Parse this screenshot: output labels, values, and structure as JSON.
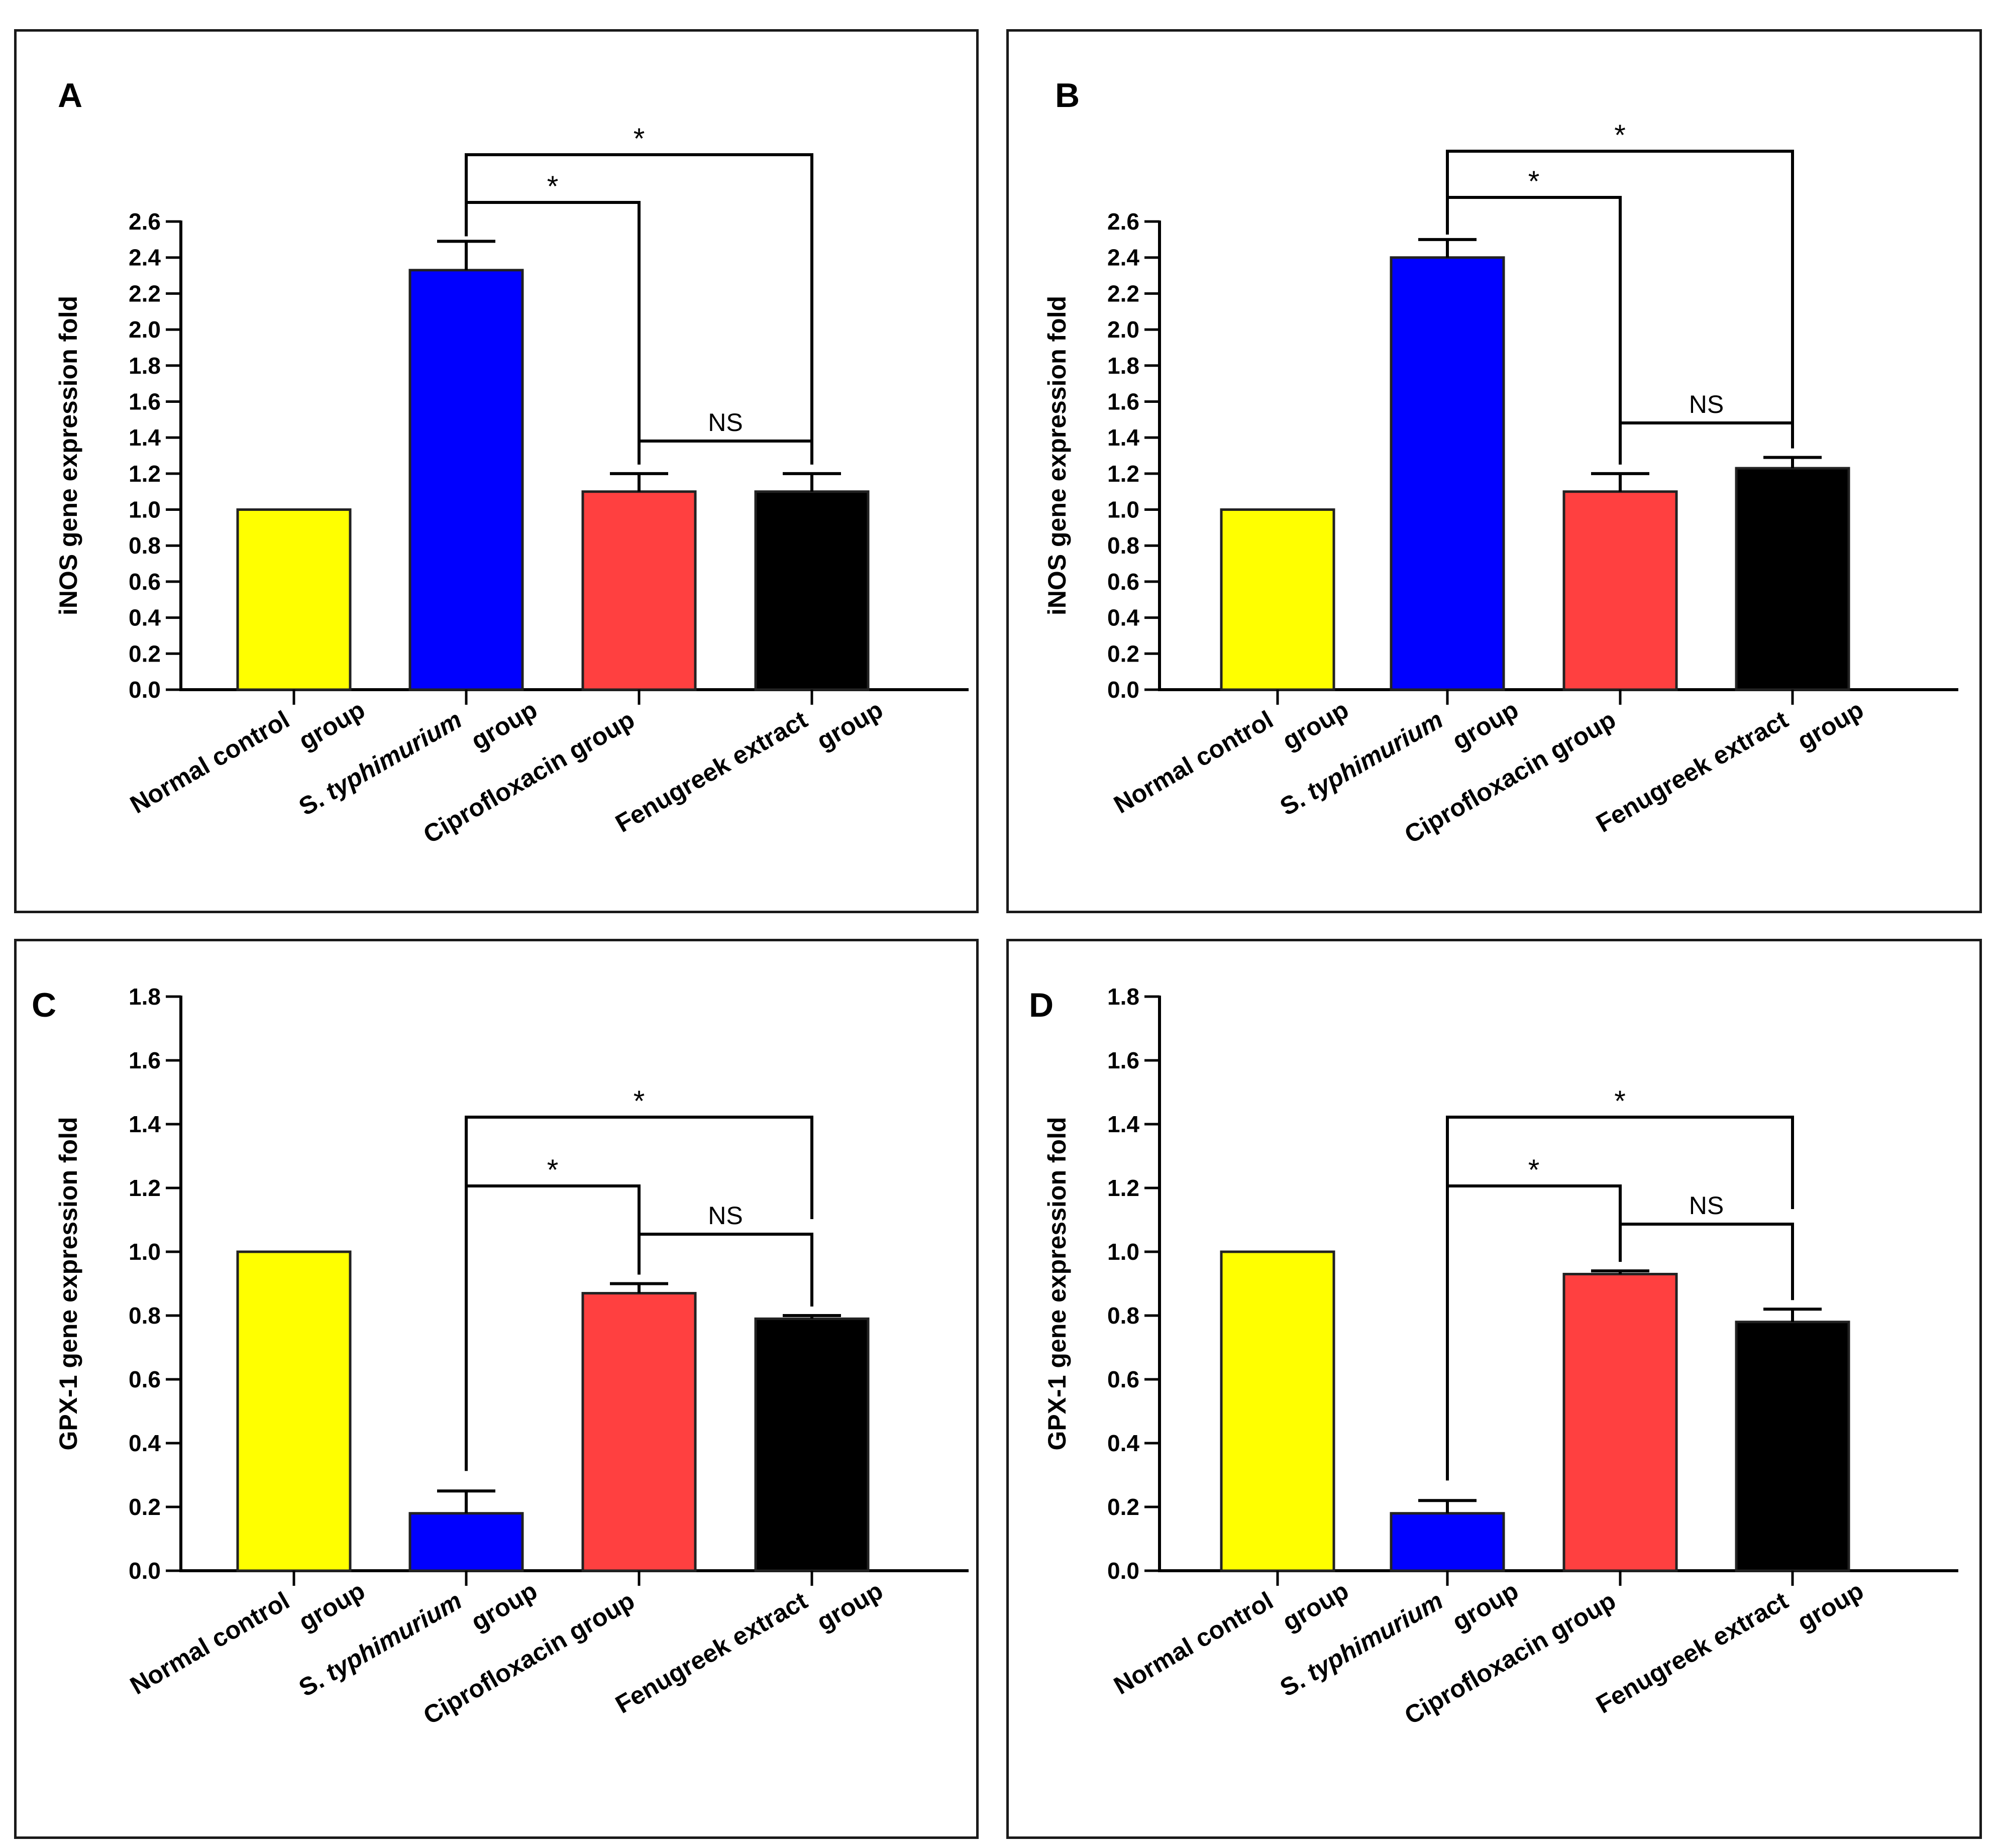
{
  "figure": {
    "colors": {
      "normal": "#ffff00",
      "typhimurium": "#0000ff",
      "ciprofloxacin": "#ff4040",
      "fenugreek": "#000000"
    }
  },
  "chart_data": [
    {
      "panel": "A",
      "type": "bar",
      "ylabel": "iNOS gene expression fold",
      "ylim": [
        0,
        2.6
      ],
      "yticks": [
        "0.0",
        "0.2",
        "0.4",
        "0.6",
        "0.8",
        "1.0",
        "1.2",
        "1.4",
        "1.6",
        "1.8",
        "2.0",
        "2.2",
        "2.4",
        "2.6"
      ],
      "categories": [
        {
          "line1": "Normal control",
          "line2": "group"
        },
        {
          "line1_pre": "S. ",
          "line1_it": "typhimurium",
          "line2": "group"
        },
        {
          "line1": "Ciprofloxacin group",
          "line2": ""
        },
        {
          "line1": "Fenugreek extract",
          "line2": "group"
        }
      ],
      "values": [
        1.0,
        2.33,
        1.1,
        1.1
      ],
      "errors": [
        0,
        0.16,
        0.1,
        0.1
      ],
      "brackets": [
        {
          "from": 1,
          "to": 3,
          "label": "*"
        },
        {
          "from": 1,
          "to": 2,
          "label": "*"
        },
        {
          "from": 2,
          "to": 3,
          "label": "NS"
        }
      ]
    },
    {
      "panel": "B",
      "type": "bar",
      "ylabel": "iNOS gene expression fold",
      "ylim": [
        0,
        2.6
      ],
      "yticks": [
        "0.0",
        "0.2",
        "0.4",
        "0.6",
        "0.8",
        "1.0",
        "1.2",
        "1.4",
        "1.6",
        "1.8",
        "2.0",
        "2.2",
        "2.4",
        "2.6"
      ],
      "categories": [
        {
          "line1": "Normal control",
          "line2": "group"
        },
        {
          "line1_pre": "S. ",
          "line1_it": "typhimurium",
          "line2": "group"
        },
        {
          "line1": "Ciprofloxacin group",
          "line2": ""
        },
        {
          "line1": "Fenugreek extract",
          "line2": "group"
        }
      ],
      "values": [
        1.0,
        2.4,
        1.1,
        1.23
      ],
      "errors": [
        0,
        0.1,
        0.1,
        0.06
      ],
      "brackets": [
        {
          "from": 1,
          "to": 3,
          "label": "*"
        },
        {
          "from": 1,
          "to": 2,
          "label": "*"
        },
        {
          "from": 2,
          "to": 3,
          "label": "NS"
        }
      ]
    },
    {
      "panel": "C",
      "type": "bar",
      "ylabel": "GPX-1 gene expression fold",
      "ylim": [
        0,
        1.8
      ],
      "yticks": [
        "0.0",
        "0.2",
        "0.4",
        "0.6",
        "0.8",
        "1.0",
        "1.2",
        "1.4",
        "1.6",
        "1.8"
      ],
      "categories": [
        {
          "line1": "Normal control",
          "line2": "group"
        },
        {
          "line1": "S. ",
          "line1_it": "typhimurium",
          "line1_pre": "S. ",
          "line2": "group"
        },
        {
          "line1": "Ciprofloxacin group",
          "line2": ""
        },
        {
          "line1": "Fenugreek extract",
          "line2": "group"
        }
      ],
      "values": [
        1.0,
        0.18,
        0.87,
        0.79
      ],
      "errors": [
        0,
        0.07,
        0.03,
        0.01
      ],
      "brackets": [
        {
          "from": 1,
          "to": 3,
          "label": "*"
        },
        {
          "from": 1,
          "to": 2,
          "label": "*"
        },
        {
          "from": 2,
          "to": 3,
          "label": "NS"
        }
      ]
    },
    {
      "panel": "D",
      "type": "bar",
      "ylabel": "GPX-1 gene expression fold",
      "ylim": [
        0,
        1.8
      ],
      "yticks": [
        "0.0",
        "0.2",
        "0.4",
        "0.6",
        "0.8",
        "1.0",
        "1.2",
        "1.4",
        "1.6",
        "1.8"
      ],
      "categories": [
        {
          "line1": "Normal control",
          "line2": "group"
        },
        {
          "line1_pre": "S. ",
          "line1_it": "typhimurium",
          "line2": "group"
        },
        {
          "line1": "Ciprofloxacin group",
          "line2": ""
        },
        {
          "line1": "Fenugreek extract",
          "line2": "group"
        }
      ],
      "values": [
        1.0,
        0.18,
        0.93,
        0.78
      ],
      "errors": [
        0,
        0.04,
        0.01,
        0.04
      ],
      "brackets": [
        {
          "from": 1,
          "to": 3,
          "label": "*"
        },
        {
          "from": 1,
          "to": 2,
          "label": "*"
        },
        {
          "from": 2,
          "to": 3,
          "label": "NS"
        }
      ]
    }
  ]
}
